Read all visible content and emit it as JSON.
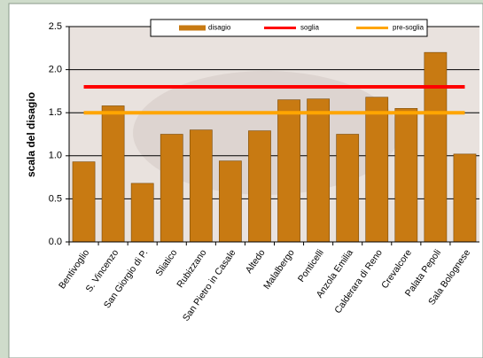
{
  "chart_data": {
    "type": "bar",
    "y_label": "scala del disagio",
    "categories": [
      "Bentivoglio",
      "S. Vincenzo",
      "San Giorgio di P.",
      "Sliatico",
      "Rubizzano",
      "San Pietro in Casale",
      "Altedo",
      "Malalbergo",
      "Ponticelli",
      "Anzola Emilia",
      "Calderara di Reno",
      "Crevalcore",
      "Palata Pepoli",
      "Sala Bolognese"
    ],
    "series": [
      {
        "name": "disagio",
        "type": "bar",
        "color": "#c87a12",
        "values": [
          0.93,
          1.58,
          0.68,
          1.25,
          1.3,
          0.94,
          1.29,
          1.65,
          1.66,
          1.25,
          1.68,
          1.55,
          2.2,
          1.02
        ]
      },
      {
        "name": "soglia",
        "type": "line",
        "color": "#ff0000",
        "values": [
          1.8,
          1.8,
          1.8,
          1.8,
          1.8,
          1.8,
          1.8,
          1.8,
          1.8,
          1.8,
          1.8,
          1.8,
          1.8,
          1.8
        ]
      },
      {
        "name": "pre-soglia",
        "type": "line",
        "color": "#ffa500",
        "values": [
          1.5,
          1.5,
          1.5,
          1.5,
          1.5,
          1.5,
          1.5,
          1.5,
          1.5,
          1.5,
          1.5,
          1.5,
          1.5,
          1.5
        ]
      }
    ],
    "ylim": [
      0,
      2.5
    ],
    "yticks": [
      {
        "value": 0,
        "label": "0.0"
      },
      0.5,
      {
        "value": 1,
        "label": "1.0"
      },
      1.5,
      {
        "value": 2,
        "label": "2.0"
      },
      2.5
    ],
    "grid": true,
    "legend": "top"
  }
}
